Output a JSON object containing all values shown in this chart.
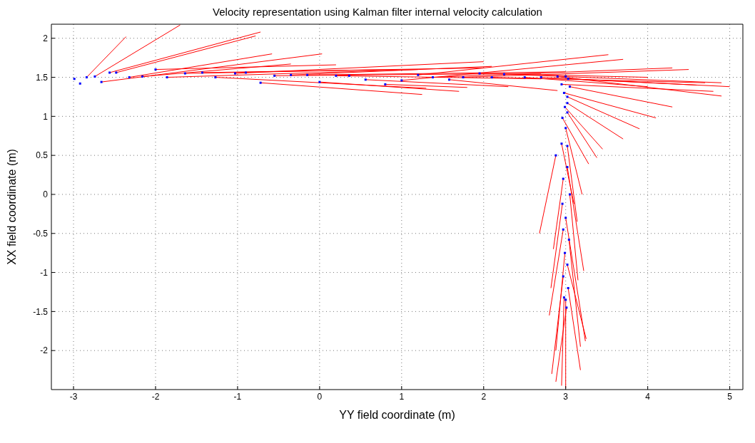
{
  "chart_data": {
    "type": "scatter",
    "title": "Velocity representation using Kalman filter internal velocity calculation",
    "xlabel": "YY field coordinate (m)",
    "ylabel": "XX field coordinate (m)",
    "xlim": [
      -3.27,
      5.16
    ],
    "xticks": [
      -3,
      -2,
      -1,
      0,
      1,
      2,
      3,
      4,
      5
    ],
    "ylim": [
      -2.5,
      2.18
    ],
    "yticks": [
      -2,
      -1.5,
      -1,
      -0.5,
      0,
      0.5,
      1,
      1.5,
      2
    ],
    "grid": true,
    "line_style": "solid",
    "series": [
      {
        "type": "line",
        "color": "#ff0000",
        "x": [
          -2.84,
          -2.36
        ],
        "values": [
          1.5,
          2.02
        ]
      },
      {
        "type": "line",
        "color": "#ff0000",
        "x": [
          -2.74,
          -1.7
        ],
        "values": [
          1.51,
          2.17
        ]
      },
      {
        "type": "line",
        "color": "#ff0000",
        "x": [
          -2.56,
          -0.72
        ],
        "values": [
          1.56,
          2.08
        ]
      },
      {
        "type": "line",
        "color": "#ff0000",
        "x": [
          -2.48,
          -0.78
        ],
        "values": [
          1.56,
          2.03
        ]
      },
      {
        "type": "line",
        "color": "#ff0000",
        "x": [
          -2.32,
          -0.58
        ],
        "values": [
          1.5,
          1.8
        ]
      },
      {
        "type": "line",
        "color": "#ff0000",
        "x": [
          -2.66,
          0.03
        ],
        "values": [
          1.44,
          1.8
        ]
      },
      {
        "type": "line",
        "color": "#ff0000",
        "x": [
          -2.16,
          -0.35
        ],
        "values": [
          1.51,
          1.67
        ]
      },
      {
        "type": "line",
        "color": "#ff0000",
        "x": [
          -2.0,
          0.2
        ],
        "values": [
          1.6,
          1.66
        ]
      },
      {
        "type": "line",
        "color": "#ff0000",
        "x": [
          -1.86,
          1.2
        ],
        "values": [
          1.5,
          1.6
        ]
      },
      {
        "type": "line",
        "color": "#ff0000",
        "x": [
          -1.64,
          0.9
        ],
        "values": [
          1.55,
          1.6
        ]
      },
      {
        "type": "line",
        "color": "#ff0000",
        "x": [
          -1.43,
          2.0
        ],
        "values": [
          1.56,
          1.62
        ]
      },
      {
        "type": "line",
        "color": "#ff0000",
        "x": [
          -1.27,
          1.3
        ],
        "values": [
          1.5,
          1.36
        ]
      },
      {
        "type": "line",
        "color": "#ff0000",
        "x": [
          -1.03,
          2.0
        ],
        "values": [
          1.55,
          1.7
        ]
      },
      {
        "type": "line",
        "color": "#ff0000",
        "x": [
          -0.72,
          1.25
        ],
        "values": [
          1.43,
          1.28
        ]
      },
      {
        "type": "line",
        "color": "#ff0000",
        "x": [
          -0.55,
          2.7
        ],
        "values": [
          1.52,
          1.55
        ]
      },
      {
        "type": "line",
        "color": "#ff0000",
        "x": [
          -0.35,
          2.1
        ],
        "values": [
          1.53,
          1.64
        ]
      },
      {
        "type": "line",
        "color": "#ff0000",
        "x": [
          -0.15,
          3.0
        ],
        "values": [
          1.53,
          1.57
        ]
      },
      {
        "type": "line",
        "color": "#ff0000",
        "x": [
          0.0,
          1.7
        ],
        "values": [
          1.44,
          1.32
        ]
      },
      {
        "type": "line",
        "color": "#ff0000",
        "x": [
          0.2,
          2.7
        ],
        "values": [
          1.52,
          1.48
        ]
      },
      {
        "type": "line",
        "color": "#ff0000",
        "x": [
          1.2,
          3.52
        ],
        "values": [
          1.53,
          1.79
        ]
      },
      {
        "type": "line",
        "color": "#ff0000",
        "x": [
          0.56,
          2.3
        ],
        "values": [
          1.47,
          1.38
        ]
      },
      {
        "type": "line",
        "color": "#ff0000",
        "x": [
          0.8,
          1.8
        ],
        "values": [
          1.41,
          1.37
        ]
      },
      {
        "type": "line",
        "color": "#ff0000",
        "x": [
          1.0,
          3.7
        ],
        "values": [
          1.46,
          1.73
        ]
      },
      {
        "type": "line",
        "color": "#ff0000",
        "x": [
          1.38,
          4.3
        ],
        "values": [
          1.5,
          1.62
        ]
      },
      {
        "type": "line",
        "color": "#ff0000",
        "x": [
          1.58,
          2.9
        ],
        "values": [
          1.47,
          1.33
        ]
      },
      {
        "type": "line",
        "color": "#ff0000",
        "x": [
          1.75,
          4.5
        ],
        "values": [
          1.5,
          1.6
        ]
      },
      {
        "type": "line",
        "color": "#ff0000",
        "x": [
          1.95,
          4.0
        ],
        "values": [
          1.55,
          1.5
        ]
      },
      {
        "type": "line",
        "color": "#ff0000",
        "x": [
          2.1,
          4.7
        ],
        "values": [
          1.5,
          1.43
        ]
      },
      {
        "type": "line",
        "color": "#ff0000",
        "x": [
          2.25,
          4.9
        ],
        "values": [
          1.54,
          1.43
        ]
      },
      {
        "type": "line",
        "color": "#ff0000",
        "x": [
          2.5,
          4.0
        ],
        "values": [
          1.5,
          1.38
        ]
      },
      {
        "type": "line",
        "color": "#ff0000",
        "x": [
          2.7,
          5.0
        ],
        "values": [
          1.5,
          1.38
        ]
      },
      {
        "type": "line",
        "color": "#ff0000",
        "x": [
          2.9,
          4.9
        ],
        "values": [
          1.51,
          1.26
        ]
      },
      {
        "type": "line",
        "color": "#ff0000",
        "x": [
          2.95,
          4.8
        ],
        "values": [
          1.41,
          1.32
        ]
      },
      {
        "type": "line",
        "color": "#ff0000",
        "x": [
          3.03,
          4.6
        ],
        "values": [
          1.48,
          1.4
        ]
      },
      {
        "type": "line",
        "color": "#ff0000",
        "x": [
          3.05,
          4.3
        ],
        "values": [
          1.38,
          1.12
        ]
      },
      {
        "type": "line",
        "color": "#ff0000",
        "x": [
          2.98,
          4.1
        ],
        "values": [
          1.3,
          0.98
        ]
      },
      {
        "type": "line",
        "color": "#ff0000",
        "x": [
          3.02,
          3.9
        ],
        "values": [
          1.25,
          0.84
        ]
      },
      {
        "type": "line",
        "color": "#ff0000",
        "x": [
          3.02,
          3.7
        ],
        "values": [
          1.17,
          0.71
        ]
      },
      {
        "type": "line",
        "color": "#ff0000",
        "x": [
          2.99,
          3.45
        ],
        "values": [
          1.12,
          0.58
        ]
      },
      {
        "type": "line",
        "color": "#ff0000",
        "x": [
          3.02,
          3.38
        ],
        "values": [
          1.05,
          0.47
        ]
      },
      {
        "type": "line",
        "color": "#ff0000",
        "x": [
          2.96,
          3.28
        ],
        "values": [
          0.98,
          0.39
        ]
      },
      {
        "type": "line",
        "color": "#ff0000",
        "x": [
          2.88,
          2.68
        ],
        "values": [
          0.5,
          -0.5
        ]
      },
      {
        "type": "line",
        "color": "#ff0000",
        "x": [
          3.0,
          3.2
        ],
        "values": [
          0.85,
          0.0
        ]
      },
      {
        "type": "line",
        "color": "#ff0000",
        "x": [
          2.95,
          3.1
        ],
        "values": [
          0.65,
          -0.12
        ]
      },
      {
        "type": "line",
        "color": "#ff0000",
        "x": [
          3.02,
          3.14
        ],
        "values": [
          0.62,
          -0.35
        ]
      },
      {
        "type": "line",
        "color": "#ff0000",
        "x": [
          3.02,
          3.22
        ],
        "values": [
          0.35,
          -0.98
        ]
      },
      {
        "type": "line",
        "color": "#ff0000",
        "x": [
          2.97,
          2.85
        ],
        "values": [
          0.2,
          -0.7
        ]
      },
      {
        "type": "line",
        "color": "#ff0000",
        "x": [
          3.05,
          3.15
        ],
        "values": [
          0.0,
          -1.1
        ]
      },
      {
        "type": "line",
        "color": "#ff0000",
        "x": [
          2.96,
          2.82
        ],
        "values": [
          -0.12,
          -1.2
        ]
      },
      {
        "type": "line",
        "color": "#ff0000",
        "x": [
          3.0,
          3.24
        ],
        "values": [
          -0.3,
          -1.88
        ]
      },
      {
        "type": "line",
        "color": "#ff0000",
        "x": [
          2.97,
          2.8
        ],
        "values": [
          -0.45,
          -1.55
        ]
      },
      {
        "type": "line",
        "color": "#ff0000",
        "x": [
          3.04,
          3.18
        ],
        "values": [
          -0.58,
          -1.95
        ]
      },
      {
        "type": "line",
        "color": "#ff0000",
        "x": [
          2.99,
          2.88
        ],
        "values": [
          -0.75,
          -2.0
        ]
      },
      {
        "type": "line",
        "color": "#ff0000",
        "x": [
          3.02,
          3.25
        ],
        "values": [
          -0.9,
          -1.85
        ]
      },
      {
        "type": "line",
        "color": "#ff0000",
        "x": [
          2.97,
          2.83
        ],
        "values": [
          -1.05,
          -2.3
        ]
      },
      {
        "type": "line",
        "color": "#ff0000",
        "x": [
          3.03,
          3.18
        ],
        "values": [
          -1.2,
          -2.25
        ]
      },
      {
        "type": "line",
        "color": "#ff0000",
        "x": [
          2.98,
          2.95
        ],
        "values": [
          -1.32,
          -2.45
        ]
      },
      {
        "type": "line",
        "color": "#ff0000",
        "x": [
          3.01,
          2.88
        ],
        "values": [
          -1.45,
          -2.4
        ]
      },
      {
        "type": "line",
        "color": "#ff0000",
        "x": [
          3.0,
          3.0
        ],
        "values": [
          -1.35,
          -2.48
        ]
      },
      {
        "color": "#0000ff",
        "marker": "square",
        "x": [
          -2.99,
          -2.92,
          -2.84,
          -2.74,
          -2.66,
          -2.56,
          -2.48,
          -2.32,
          -2.16,
          -2.0,
          -1.86,
          -1.64,
          -1.43,
          -1.27,
          -1.03,
          -0.9,
          -0.72,
          -0.55,
          -0.35,
          -0.15,
          0.0,
          0.2,
          0.36,
          0.56,
          0.8,
          1.0,
          1.2,
          1.38,
          1.58,
          1.75,
          1.95,
          2.1,
          2.25,
          2.5,
          2.7,
          2.9,
          3.0,
          2.95,
          3.03,
          3.05,
          2.98,
          3.02,
          3.02,
          2.99,
          3.02,
          2.96,
          2.88,
          3.0,
          2.95,
          3.02,
          3.02,
          2.97,
          3.05,
          2.96,
          3.0,
          2.97,
          3.04,
          2.99,
          3.02,
          2.97,
          3.03,
          2.98,
          3.01,
          3.0
        ],
        "values": [
          1.48,
          1.42,
          1.5,
          1.51,
          1.44,
          1.56,
          1.56,
          1.5,
          1.51,
          1.6,
          1.5,
          1.55,
          1.56,
          1.5,
          1.55,
          1.56,
          1.43,
          1.52,
          1.53,
          1.53,
          1.44,
          1.52,
          1.52,
          1.47,
          1.41,
          1.46,
          1.53,
          1.5,
          1.47,
          1.5,
          1.55,
          1.5,
          1.54,
          1.5,
          1.5,
          1.51,
          1.51,
          1.41,
          1.48,
          1.38,
          1.3,
          1.25,
          1.17,
          1.12,
          1.05,
          0.98,
          0.5,
          0.85,
          0.65,
          0.62,
          0.35,
          0.2,
          0.0,
          -0.12,
          -0.3,
          -0.45,
          -0.58,
          -0.75,
          -0.9,
          -1.05,
          -1.2,
          -1.32,
          -1.45,
          -1.35
        ]
      }
    ]
  }
}
